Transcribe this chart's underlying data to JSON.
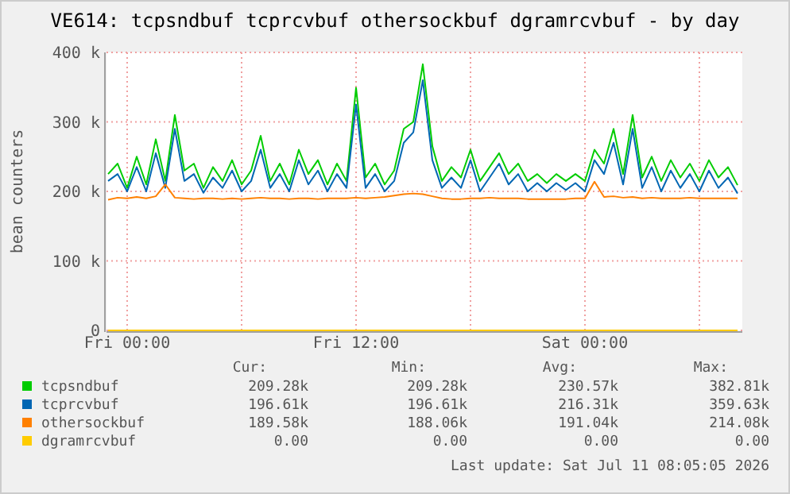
{
  "chart_data": {
    "type": "line",
    "title": "VE614: tcpsndbuf tcprcvbuf othersockbuf dgramrcvbuf - by day",
    "ylabel": "bean counters",
    "x": [
      "2026-07-09T23:00",
      "2026-07-09T23:30",
      "2026-07-10T00:00",
      "2026-07-10T00:30",
      "2026-07-10T01:00",
      "2026-07-10T01:30",
      "2026-07-10T02:00",
      "2026-07-10T02:30",
      "2026-07-10T03:00",
      "2026-07-10T03:30",
      "2026-07-10T04:00",
      "2026-07-10T04:30",
      "2026-07-10T05:00",
      "2026-07-10T05:30",
      "2026-07-10T06:00",
      "2026-07-10T06:30",
      "2026-07-10T07:00",
      "2026-07-10T07:30",
      "2026-07-10T08:00",
      "2026-07-10T08:30",
      "2026-07-10T09:00",
      "2026-07-10T09:30",
      "2026-07-10T10:00",
      "2026-07-10T10:30",
      "2026-07-10T11:00",
      "2026-07-10T11:30",
      "2026-07-10T12:00",
      "2026-07-10T12:30",
      "2026-07-10T13:00",
      "2026-07-10T13:30",
      "2026-07-10T14:00",
      "2026-07-10T14:30",
      "2026-07-10T15:00",
      "2026-07-10T15:30",
      "2026-07-10T16:00",
      "2026-07-10T16:30",
      "2026-07-10T17:00",
      "2026-07-10T17:30",
      "2026-07-10T18:00",
      "2026-07-10T18:30",
      "2026-07-10T19:00",
      "2026-07-10T19:30",
      "2026-07-10T20:00",
      "2026-07-10T20:30",
      "2026-07-10T21:00",
      "2026-07-10T21:30",
      "2026-07-10T22:00",
      "2026-07-10T22:30",
      "2026-07-10T23:00",
      "2026-07-10T23:30",
      "2026-07-11T00:00",
      "2026-07-11T00:30",
      "2026-07-11T01:00",
      "2026-07-11T01:30",
      "2026-07-11T02:00",
      "2026-07-11T02:30",
      "2026-07-11T03:00",
      "2026-07-11T03:30",
      "2026-07-11T04:00",
      "2026-07-11T04:30",
      "2026-07-11T05:00",
      "2026-07-11T05:30",
      "2026-07-11T06:00",
      "2026-07-11T06:30",
      "2026-07-11T07:00",
      "2026-07-11T07:30",
      "2026-07-11T08:00"
    ],
    "series": [
      {
        "name": "tcpsndbuf",
        "color": "#00cc00",
        "values": [
          225000,
          240000,
          205000,
          250000,
          210000,
          275000,
          215000,
          310000,
          230000,
          240000,
          205000,
          235000,
          215000,
          245000,
          210000,
          230000,
          280000,
          215000,
          240000,
          210000,
          260000,
          225000,
          245000,
          210000,
          240000,
          215000,
          349000,
          220000,
          240000,
          210000,
          230000,
          290000,
          300000,
          383000,
          265000,
          215000,
          235000,
          220000,
          260000,
          215000,
          235000,
          255000,
          225000,
          240000,
          215000,
          225000,
          212000,
          225000,
          215000,
          225000,
          215000,
          260000,
          240000,
          290000,
          225000,
          310000,
          220000,
          250000,
          215000,
          245000,
          220000,
          240000,
          215000,
          245000,
          220000,
          235000,
          209000
        ]
      },
      {
        "name": "tcprcvbuf",
        "color": "#0066b3",
        "values": [
          215000,
          225000,
          200000,
          235000,
          200000,
          255000,
          205000,
          290000,
          215000,
          225000,
          198000,
          220000,
          205000,
          230000,
          200000,
          215000,
          260000,
          205000,
          225000,
          200000,
          245000,
          210000,
          230000,
          200000,
          225000,
          205000,
          325000,
          205000,
          225000,
          200000,
          215000,
          270000,
          285000,
          360000,
          245000,
          205000,
          220000,
          205000,
          245000,
          200000,
          220000,
          240000,
          210000,
          225000,
          200000,
          212000,
          200000,
          212000,
          202000,
          212000,
          200000,
          245000,
          225000,
          270000,
          210000,
          290000,
          205000,
          235000,
          200000,
          230000,
          205000,
          225000,
          200000,
          230000,
          205000,
          220000,
          197000
        ]
      },
      {
        "name": "othersockbuf",
        "color": "#ff8000",
        "values": [
          188000,
          191000,
          190000,
          192000,
          190000,
          193000,
          210000,
          191000,
          190000,
          189000,
          190000,
          190000,
          189000,
          190000,
          189000,
          190000,
          191000,
          190000,
          190000,
          189000,
          190000,
          190000,
          189000,
          190000,
          190000,
          190000,
          191000,
          190000,
          191000,
          192000,
          194000,
          196000,
          197000,
          196000,
          193000,
          190000,
          189000,
          189000,
          190000,
          190000,
          191000,
          190000,
          190000,
          190000,
          189000,
          189000,
          189000,
          189000,
          189000,
          190000,
          190000,
          214000,
          192000,
          193000,
          191000,
          192000,
          190000,
          191000,
          190000,
          190000,
          190000,
          191000,
          190000,
          190000,
          190000,
          190000,
          190000
        ]
      },
      {
        "name": "dgramrcvbuf",
        "color": "#ffcc00",
        "values": [
          0,
          0,
          0,
          0,
          0,
          0,
          0,
          0,
          0,
          0,
          0,
          0,
          0,
          0,
          0,
          0,
          0,
          0,
          0,
          0,
          0,
          0,
          0,
          0,
          0,
          0,
          0,
          0,
          0,
          0,
          0,
          0,
          0,
          0,
          0,
          0,
          0,
          0,
          0,
          0,
          0,
          0,
          0,
          0,
          0,
          0,
          0,
          0,
          0,
          0,
          0,
          0,
          0,
          0,
          0,
          0,
          0,
          0,
          0,
          0,
          0,
          0,
          0,
          0,
          0,
          0,
          0
        ]
      }
    ],
    "xlim": [
      "2026-07-09T22:55",
      "2026-07-11T08:15"
    ],
    "xticks": [
      {
        "value": "2026-07-10T00:00",
        "label": "Fri 00:00"
      },
      {
        "value": "2026-07-10T06:00",
        "label": null
      },
      {
        "value": "2026-07-10T12:00",
        "label": "Fri 12:00"
      },
      {
        "value": "2026-07-10T18:00",
        "label": null
      },
      {
        "value": "2026-07-11T00:00",
        "label": "Sat 00:00"
      },
      {
        "value": "2026-07-11T06:00",
        "label": null
      }
    ],
    "ylim": [
      0,
      400000
    ],
    "yticks": [
      0,
      {
        "value": 100000,
        "label": "100 k"
      },
      {
        "value": 200000,
        "label": "200 k"
      },
      {
        "value": 300000,
        "label": "300 k"
      },
      {
        "value": 400000,
        "label": "400 k"
      }
    ],
    "grid": true,
    "legend": "bottom",
    "marker": "none",
    "line_style": "solid",
    "annotations": [
      "Cur:",
      "Min:",
      "Avg:",
      "Max:",
      "209.28k",
      "209.28k",
      "230.57k",
      "382.81k",
      "196.61k",
      "196.61k",
      "216.31k",
      "359.63k",
      "189.58k",
      "188.06k",
      "191.04k",
      "214.08k",
      "0.00",
      "0.00",
      "0.00",
      "0.00",
      "Last update: Sat Jul 11 08:05:05 2026"
    ]
  }
}
